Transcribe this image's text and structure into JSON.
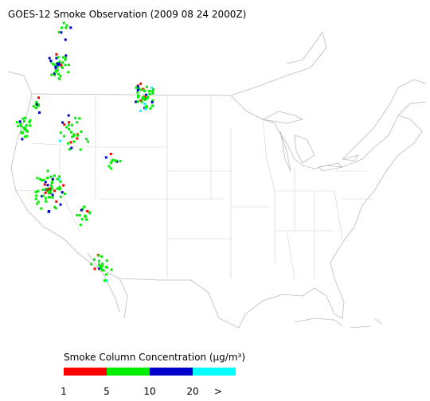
{
  "title": "GOES-12 Smoke Observation (2009 08 24  2000Z)",
  "legend": {
    "title": "Smoke Column Concentration (μg/m³)",
    "bins": [
      {
        "color": "#ff0000"
      },
      {
        "color": "#00ee00"
      },
      {
        "color": "#0000cc"
      },
      {
        "color": "#00ffff"
      }
    ],
    "ticks": [
      1,
      5,
      10,
      20
    ],
    "overflow_label": ">"
  }
}
